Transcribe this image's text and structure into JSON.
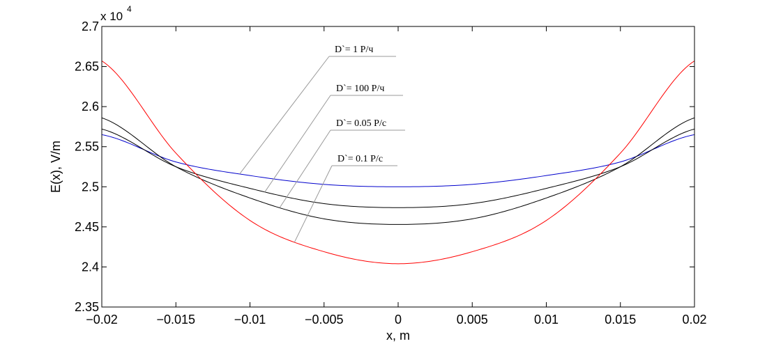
{
  "chart_data": {
    "type": "line",
    "title": "",
    "xlabel": "x, m",
    "ylabel": "E(x), V/m",
    "y_multiplier": "x 10",
    "y_exponent": "4",
    "xlim": [
      -0.02,
      0.02
    ],
    "ylim": [
      2.35,
      2.7
    ],
    "grid": false,
    "x_ticks": [
      "-0.02",
      "-0.015",
      "-0.01",
      "-0.005",
      "0",
      "0.005",
      "0.01",
      "0.015",
      "0.02"
    ],
    "y_ticks": [
      "2.35",
      "2.4",
      "2.45",
      "2.5",
      "2.55",
      "2.6",
      "2.65",
      "2.7"
    ],
    "x": [
      -0.02,
      -0.015,
      -0.01,
      -0.005,
      0,
      0.005,
      0.01,
      0.015,
      0.02
    ],
    "series": [
      {
        "color": "#0000cc",
        "values": [
          2.565,
          2.531,
          2.514,
          2.503,
          2.5,
          2.503,
          2.514,
          2.531,
          2.565
        ]
      },
      {
        "color": "#000000",
        "values": [
          2.572,
          2.525,
          2.498,
          2.479,
          2.474,
          2.479,
          2.498,
          2.525,
          2.572
        ]
      },
      {
        "color": "#000000",
        "values": [
          2.586,
          2.525,
          2.486,
          2.46,
          2.453,
          2.46,
          2.486,
          2.525,
          2.586
        ]
      },
      {
        "color": "#ff0000",
        "values": [
          2.657,
          2.542,
          2.458,
          2.419,
          2.404,
          2.419,
          2.458,
          2.542,
          2.657
        ]
      }
    ],
    "annotations": [
      {
        "text": "D`= 1 Р/ч",
        "series": 0,
        "at_x": -0.0107
      },
      {
        "text": "D`= 100 Р/ч",
        "series": 1,
        "at_x": -0.009
      },
      {
        "text": "D`= 0.05 Р/с",
        "series": 2,
        "at_x": -0.008
      },
      {
        "text": "D`= 0.1 Р/с",
        "series": 3,
        "at_x": -0.007
      }
    ]
  }
}
